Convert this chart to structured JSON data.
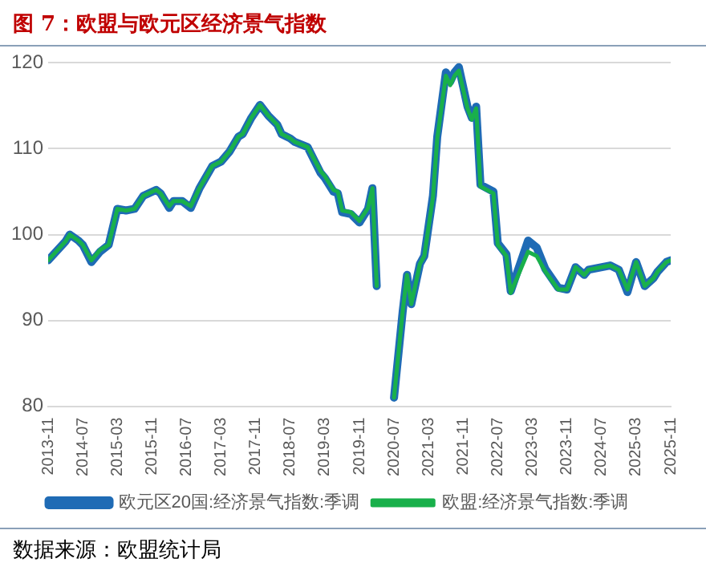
{
  "chart_data": {
    "type": "line",
    "title": "图 7：欧盟与欧元区经济景气指数",
    "x": [
      "2013-11",
      "2014-03",
      "2014-04",
      "2014-06",
      "2014-07",
      "2014-09",
      "2014-11",
      "2015-01",
      "2015-03",
      "2015-05",
      "2015-07",
      "2015-09",
      "2015-12",
      "2016-01",
      "2016-03",
      "2016-04",
      "2016-06",
      "2016-08",
      "2016-10",
      "2017-01",
      "2017-03",
      "2017-05",
      "2017-07",
      "2017-08",
      "2017-10",
      "2017-12",
      "2018-02",
      "2018-04",
      "2018-05",
      "2018-07",
      "2018-08",
      "2018-11",
      "2019-02",
      "2019-03",
      "2019-05",
      "2019-06",
      "2019-07",
      "2019-09",
      "2019-11",
      "2020-01",
      "2020-02",
      "2020-03",
      "2020-04",
      "2020-06",
      "2020-07",
      "2020-09",
      "2020-10",
      "2020-11",
      "2021-01",
      "2021-02",
      "2021-04",
      "2021-05",
      "2021-07",
      "2021-08",
      "2021-09",
      "2021-10",
      "2021-12",
      "2022-01",
      "2022-02",
      "2022-03",
      "2022-06",
      "2022-07",
      "2022-09",
      "2022-10",
      "2023-02",
      "2023-04",
      "2023-06",
      "2023-09",
      "2023-11",
      "2024-01",
      "2024-03",
      "2024-04",
      "2024-09",
      "2024-11",
      "2025-01",
      "2025-03",
      "2025-05",
      "2025-07",
      "2025-08",
      "2025-10",
      "2025-11"
    ],
    "series": [
      {
        "name": "欧元区20国:经济景气指数:季调",
        "color": "#1f6bb5",
        "values": [
          97.0,
          99.2,
          100.0,
          99.3,
          98.8,
          96.8,
          98.0,
          98.8,
          103.0,
          102.8,
          103.0,
          104.5,
          105.2,
          104.8,
          103.1,
          103.9,
          103.9,
          103.1,
          105.4,
          108.0,
          108.5,
          109.7,
          111.4,
          111.7,
          113.6,
          115.1,
          113.8,
          112.8,
          111.7,
          111.2,
          110.8,
          110.2,
          107.2,
          106.6,
          105.0,
          104.8,
          102.6,
          102.4,
          101.4,
          103.0,
          105.4,
          94.0,
          null,
          null,
          81.0,
          91.0,
          95.3,
          91.9,
          96.6,
          97.5,
          104.5,
          111.4,
          118.9,
          117.8,
          118.9,
          119.5,
          114.9,
          113.6,
          114.9,
          105.8,
          105.0,
          99.0,
          97.7,
          93.4,
          99.3,
          98.5,
          96.0,
          93.8,
          93.6,
          96.2,
          95.3,
          95.9,
          96.4,
          95.9,
          93.3,
          96.8,
          94.0,
          94.9,
          95.7,
          96.8,
          97.0
        ]
      },
      {
        "name": "欧盟:经济景气指数:季调",
        "color": "#19b04b",
        "values": [
          97.0,
          99.2,
          100.0,
          99.3,
          98.8,
          97.0,
          98.2,
          98.8,
          103.0,
          102.8,
          103.0,
          104.5,
          105.2,
          104.8,
          103.3,
          103.9,
          103.9,
          103.3,
          105.4,
          108.0,
          108.5,
          109.7,
          111.4,
          111.7,
          113.6,
          115.1,
          113.8,
          112.8,
          111.7,
          111.2,
          110.8,
          110.2,
          107.4,
          106.8,
          105.2,
          105.0,
          102.8,
          102.6,
          101.6,
          103.1,
          105.4,
          94.0,
          null,
          null,
          81.0,
          91.0,
          95.3,
          91.9,
          96.6,
          97.5,
          104.3,
          111.2,
          118.5,
          117.4,
          118.5,
          119.1,
          114.7,
          113.4,
          114.7,
          105.6,
          104.8,
          98.8,
          97.5,
          93.2,
          98.0,
          97.5,
          95.7,
          93.6,
          93.6,
          96.2,
          95.3,
          95.9,
          96.4,
          95.9,
          93.6,
          96.8,
          94.0,
          94.9,
          95.7,
          96.8,
          97.0
        ]
      }
    ],
    "xlim": [
      "2013-11",
      "2025-11"
    ],
    "xticks": [
      "2013-11",
      "2014-07",
      "2015-03",
      "2015-11",
      "2016-07",
      "2017-03",
      "2017-11",
      "2018-07",
      "2019-03",
      "2019-11",
      "2020-07",
      "2021-03",
      "2021-11",
      "2022-07",
      "2023-03",
      "2023-11",
      "2024-07",
      "2025-03",
      "2025-11"
    ],
    "ylim": [
      80,
      120
    ],
    "yticks": [
      80,
      90,
      100,
      110,
      120
    ],
    "grid": "y",
    "legend": "bottom",
    "marker": "none",
    "line_style": "solid",
    "annotations": [
      "数据来源：欧盟统计局"
    ]
  }
}
